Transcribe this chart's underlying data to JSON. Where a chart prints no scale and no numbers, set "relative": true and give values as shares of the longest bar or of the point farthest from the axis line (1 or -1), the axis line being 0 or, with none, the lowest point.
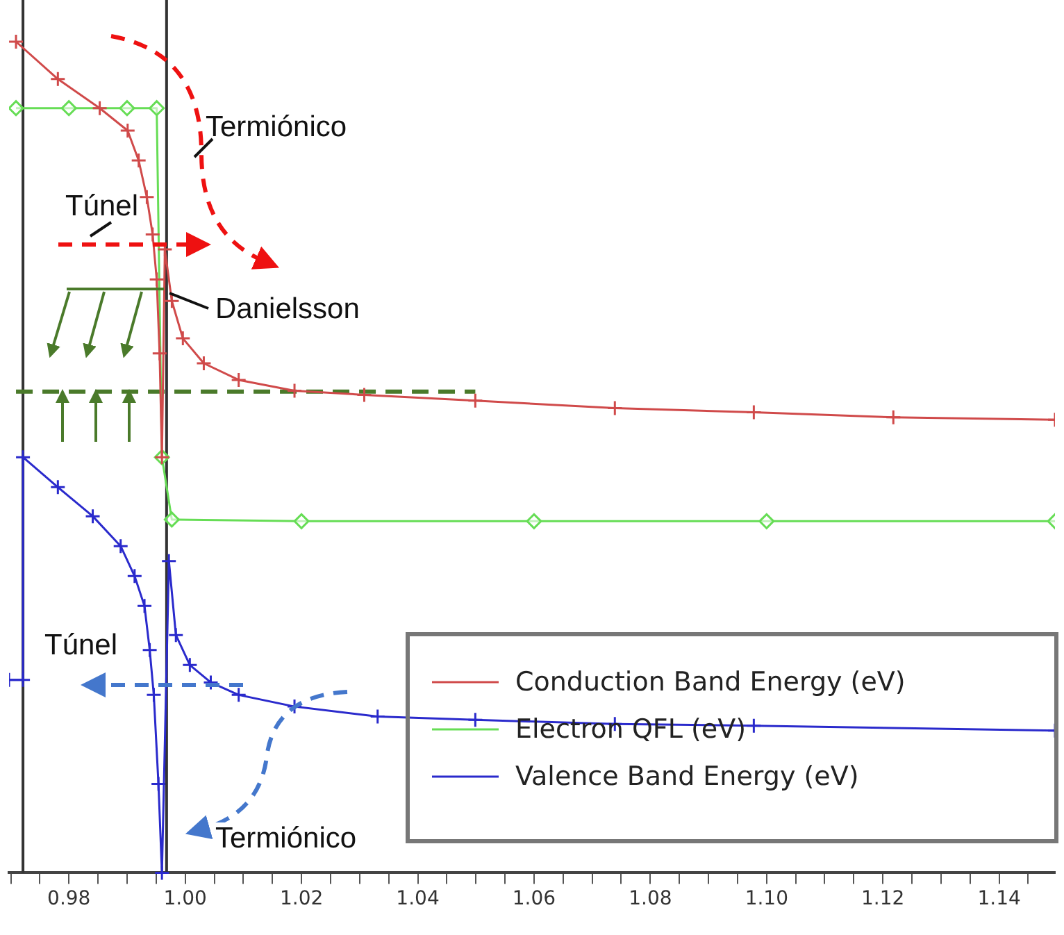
{
  "chart_data": {
    "type": "line",
    "relative": true,
    "annotations": [
      "Termiónico",
      "Túnel",
      "Danielsson",
      "Túnel",
      "Termiónico"
    ],
    "xlim": [
      0.9697,
      1.1496
    ],
    "xticks": [
      {
        "value": 0.97,
        "label": null
      },
      {
        "value": 0.975,
        "label": null
      },
      0.98,
      {
        "value": 0.985,
        "label": null
      },
      {
        "value": 0.99,
        "label": null
      },
      {
        "value": 0.995,
        "label": null
      },
      {
        "value": 1.0,
        "label": "1.00"
      },
      {
        "value": 1.005,
        "label": null
      },
      {
        "value": 1.01,
        "label": null
      },
      {
        "value": 1.015,
        "label": null
      },
      1.02,
      {
        "value": 1.025,
        "label": null
      },
      {
        "value": 1.03,
        "label": null
      },
      {
        "value": 1.035,
        "label": null
      },
      1.04,
      {
        "value": 1.045,
        "label": null
      },
      {
        "value": 1.05,
        "label": null
      },
      {
        "value": 1.055,
        "label": null
      },
      1.06,
      {
        "value": 1.065,
        "label": null
      },
      {
        "value": 1.07,
        "label": null
      },
      {
        "value": 1.075,
        "label": null
      },
      1.08,
      {
        "value": 1.085,
        "label": null
      },
      {
        "value": 1.09,
        "label": null
      },
      {
        "value": 1.095,
        "label": null
      },
      {
        "value": 1.1,
        "label": "1.10"
      },
      {
        "value": 1.105,
        "label": null
      },
      {
        "value": 1.11,
        "label": null
      },
      {
        "value": 1.115,
        "label": null
      },
      1.12,
      {
        "value": 1.125,
        "label": null
      },
      {
        "value": 1.13,
        "label": null
      },
      {
        "value": 1.135,
        "label": null
      },
      1.14,
      {
        "value": 1.145,
        "label": null
      }
    ],
    "grid": false,
    "legend": "bottom right",
    "ref_lines": [
      {
        "axis": "x",
        "value": 0.9721,
        "color": "#333333"
      },
      {
        "axis": "x",
        "value": 0.9968,
        "color": "#333333"
      }
    ],
    "series": [
      {
        "name": "Conduction Band Energy (eV)",
        "color": "#d04a4a",
        "marker": "cross",
        "x": [
          0.9709,
          0.9781,
          0.9853,
          0.9901,
          0.992,
          0.9934,
          0.9944,
          0.9951,
          0.9956,
          0.996,
          0.9965,
          0.9977,
          0.9996,
          1.0032,
          1.0092,
          1.0188,
          1.0308,
          1.0499,
          1.0739,
          1.0978,
          1.1218,
          1.1496
        ],
        "values": [
          1.0,
          0.955,
          0.92,
          0.893,
          0.857,
          0.813,
          0.768,
          0.714,
          0.625,
          0.5,
          0.75,
          0.688,
          0.643,
          0.613,
          0.593,
          0.58,
          0.575,
          0.568,
          0.559,
          0.554,
          0.548,
          0.545
        ]
      },
      {
        "name": "Electron QFL (eV)",
        "color": "#66dd55",
        "marker": "diamond",
        "x": [
          0.9709,
          0.98,
          0.99,
          0.9951,
          0.996,
          0.9977,
          1.02,
          1.06,
          1.1,
          1.1496
        ],
        "values": [
          0.92,
          0.92,
          0.92,
          0.92,
          0.5,
          0.425,
          0.423,
          0.423,
          0.423,
          0.423
        ]
      },
      {
        "name": "Valence Band Energy (eV)",
        "color": "#2a2acc",
        "marker": "cross",
        "x": [
          0.9697,
          0.9721,
          0.9721,
          0.9781,
          0.9841,
          0.9889,
          0.9913,
          0.993,
          0.9939,
          0.9946,
          0.9954,
          0.996,
          0.9972,
          0.9984,
          1.0008,
          1.0044,
          1.0092,
          1.0188,
          1.0331,
          1.0499,
          1.0739,
          1.0978,
          1.1496
        ],
        "values": [
          0.232,
          0.232,
          0.5,
          0.464,
          0.429,
          0.393,
          0.357,
          0.321,
          0.268,
          0.214,
          0.107,
          0.0,
          0.375,
          0.286,
          0.25,
          0.229,
          0.214,
          0.2,
          0.188,
          0.184,
          0.179,
          0.177,
          0.171
        ]
      },
      {
        "color": "#4a7a2a",
        "marker": "none",
        "line_style": "dashed",
        "x": [
          0.9709,
          1.0499
        ],
        "values": [
          0.579,
          0.579
        ]
      }
    ]
  }
}
